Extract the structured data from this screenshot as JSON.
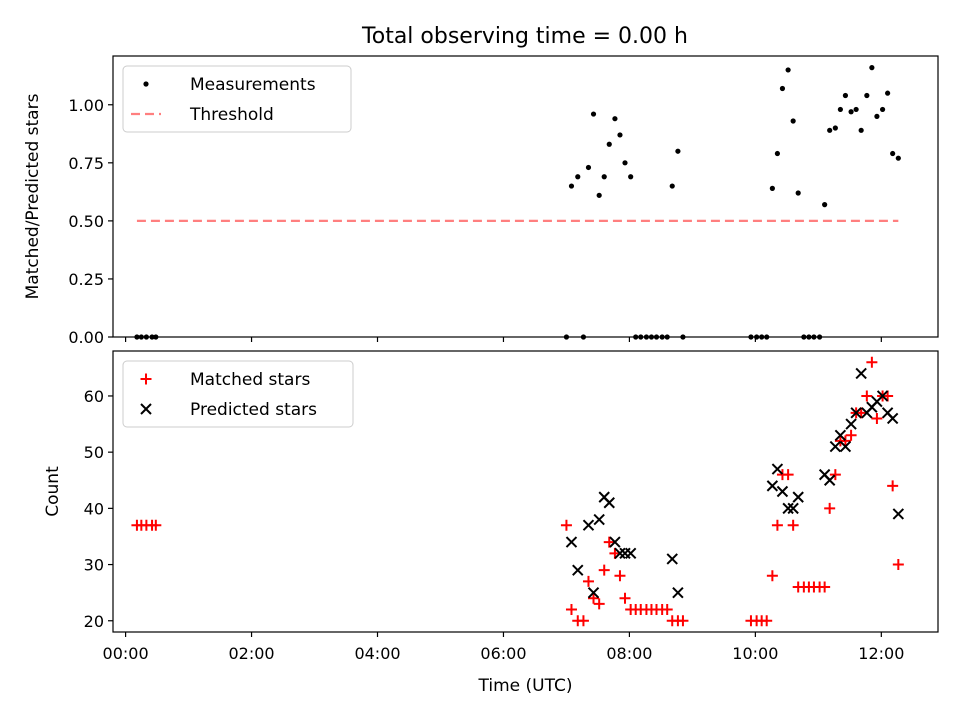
{
  "figure": {
    "title": "Total observing time = 0.00 h"
  },
  "chart_data": [
    {
      "type": "scatter",
      "ylabel": "Matched/Predicted stars",
      "xlabel": "",
      "xlim_hours": [
        -0.2,
        12.9
      ],
      "ylim": [
        0,
        1.21
      ],
      "yticks": [
        0.0,
        0.25,
        0.5,
        0.75,
        1.0
      ],
      "ytick_labels": [
        "0.00",
        "0.25",
        "0.50",
        "0.75",
        "1.00"
      ],
      "xticks_hours": [
        0,
        2,
        4,
        6,
        8,
        10,
        12
      ],
      "grid": false,
      "legend_position": "top-left",
      "legend": [
        "Measurements",
        "Threshold"
      ],
      "series": [
        {
          "name": "Measurements",
          "marker": "dot",
          "color": "#000000",
          "x_hours": [
            0.18,
            0.25,
            0.33,
            0.42,
            0.48,
            7.0,
            7.08,
            7.18,
            7.27,
            7.35,
            7.43,
            7.52,
            7.6,
            7.68,
            7.77,
            7.85,
            7.93,
            8.02,
            8.1,
            8.18,
            8.27,
            8.35,
            8.43,
            8.52,
            8.6,
            8.68,
            8.77,
            8.85,
            9.93,
            10.02,
            10.1,
            10.18,
            10.27,
            10.35,
            10.43,
            10.52,
            10.6,
            10.68,
            10.77,
            10.85,
            10.93,
            11.02,
            11.1,
            11.18,
            11.27,
            11.35,
            11.43,
            11.52,
            11.6,
            11.68,
            11.77,
            11.85,
            11.93,
            12.02,
            12.1,
            12.18,
            12.27
          ],
          "y": [
            0,
            0,
            0,
            0,
            0,
            0,
            0.65,
            0.69,
            0,
            0.73,
            0.96,
            0.61,
            0.69,
            0.83,
            0.94,
            0.87,
            0.75,
            0.69,
            0,
            0,
            0,
            0,
            0,
            0,
            0,
            0.65,
            0.8,
            0,
            0,
            0,
            0,
            0,
            0.64,
            0.79,
            1.07,
            1.15,
            0.93,
            0.62,
            0,
            0,
            0,
            0,
            0.57,
            0.89,
            0.9,
            0.98,
            1.04,
            0.97,
            0.98,
            0.89,
            1.04,
            1.16,
            0.95,
            0.98,
            1.05,
            0.79,
            0.77
          ]
        },
        {
          "name": "Threshold",
          "style": "dashed",
          "color": "#ff7f7f",
          "x_hours": [
            0.18,
            12.27
          ],
          "y": [
            0.5,
            0.5
          ]
        }
      ]
    },
    {
      "type": "scatter",
      "ylabel": "Count",
      "xlabel": "Time (UTC)",
      "xlim_hours": [
        -0.2,
        12.9
      ],
      "ylim": [
        18,
        68
      ],
      "yticks": [
        20,
        30,
        40,
        50,
        60
      ],
      "ytick_labels": [
        "20",
        "30",
        "40",
        "50",
        "60"
      ],
      "xticks_hours": [
        0,
        2,
        4,
        6,
        8,
        10,
        12
      ],
      "xtick_labels": [
        "00:00",
        "02:00",
        "04:00",
        "06:00",
        "08:00",
        "10:00",
        "12:00"
      ],
      "grid": false,
      "legend_position": "top-left",
      "legend": [
        "Matched stars",
        "Predicted stars"
      ],
      "series": [
        {
          "name": "Matched stars",
          "marker": "plus",
          "color": "#ff0000",
          "x_hours": [
            0.18,
            0.25,
            0.33,
            0.42,
            0.48,
            7.0,
            7.08,
            7.18,
            7.27,
            7.35,
            7.43,
            7.52,
            7.6,
            7.68,
            7.77,
            7.85,
            7.93,
            8.02,
            8.1,
            8.18,
            8.27,
            8.35,
            8.43,
            8.52,
            8.6,
            8.68,
            8.77,
            8.85,
            9.93,
            10.02,
            10.1,
            10.18,
            10.27,
            10.35,
            10.43,
            10.52,
            10.6,
            10.68,
            10.77,
            10.85,
            10.93,
            11.02,
            11.1,
            11.18,
            11.27,
            11.35,
            11.43,
            11.52,
            11.6,
            11.68,
            11.77,
            11.85,
            11.93,
            12.02,
            12.1,
            12.18,
            12.27
          ],
          "y": [
            37,
            37,
            37,
            37,
            37,
            37,
            22,
            20,
            20,
            27,
            24,
            23,
            29,
            34,
            32,
            28,
            24,
            22,
            22,
            22,
            22,
            22,
            22,
            22,
            22,
            20,
            20,
            20,
            20,
            20,
            20,
            20,
            28,
            37,
            46,
            46,
            37,
            26,
            26,
            26,
            26,
            26,
            26,
            40,
            46,
            52,
            52,
            53,
            57,
            57,
            60,
            66,
            56,
            60,
            60,
            44,
            30
          ]
        },
        {
          "name": "Predicted stars",
          "marker": "x",
          "color": "#000000",
          "x_hours": [
            7.08,
            7.18,
            7.35,
            7.43,
            7.52,
            7.6,
            7.68,
            7.77,
            7.85,
            7.93,
            8.02,
            8.68,
            8.77,
            10.27,
            10.35,
            10.43,
            10.52,
            10.6,
            10.68,
            11.1,
            11.18,
            11.27,
            11.35,
            11.43,
            11.52,
            11.6,
            11.68,
            11.77,
            11.85,
            11.93,
            12.02,
            12.1,
            12.18,
            12.27
          ],
          "y": [
            34,
            29,
            37,
            25,
            38,
            42,
            41,
            34,
            32,
            32,
            32,
            31,
            25,
            44,
            47,
            43,
            40,
            40,
            42,
            46,
            45,
            51,
            53,
            51,
            55,
            57,
            64,
            57,
            58,
            59,
            60,
            57,
            56,
            39
          ]
        }
      ]
    }
  ]
}
